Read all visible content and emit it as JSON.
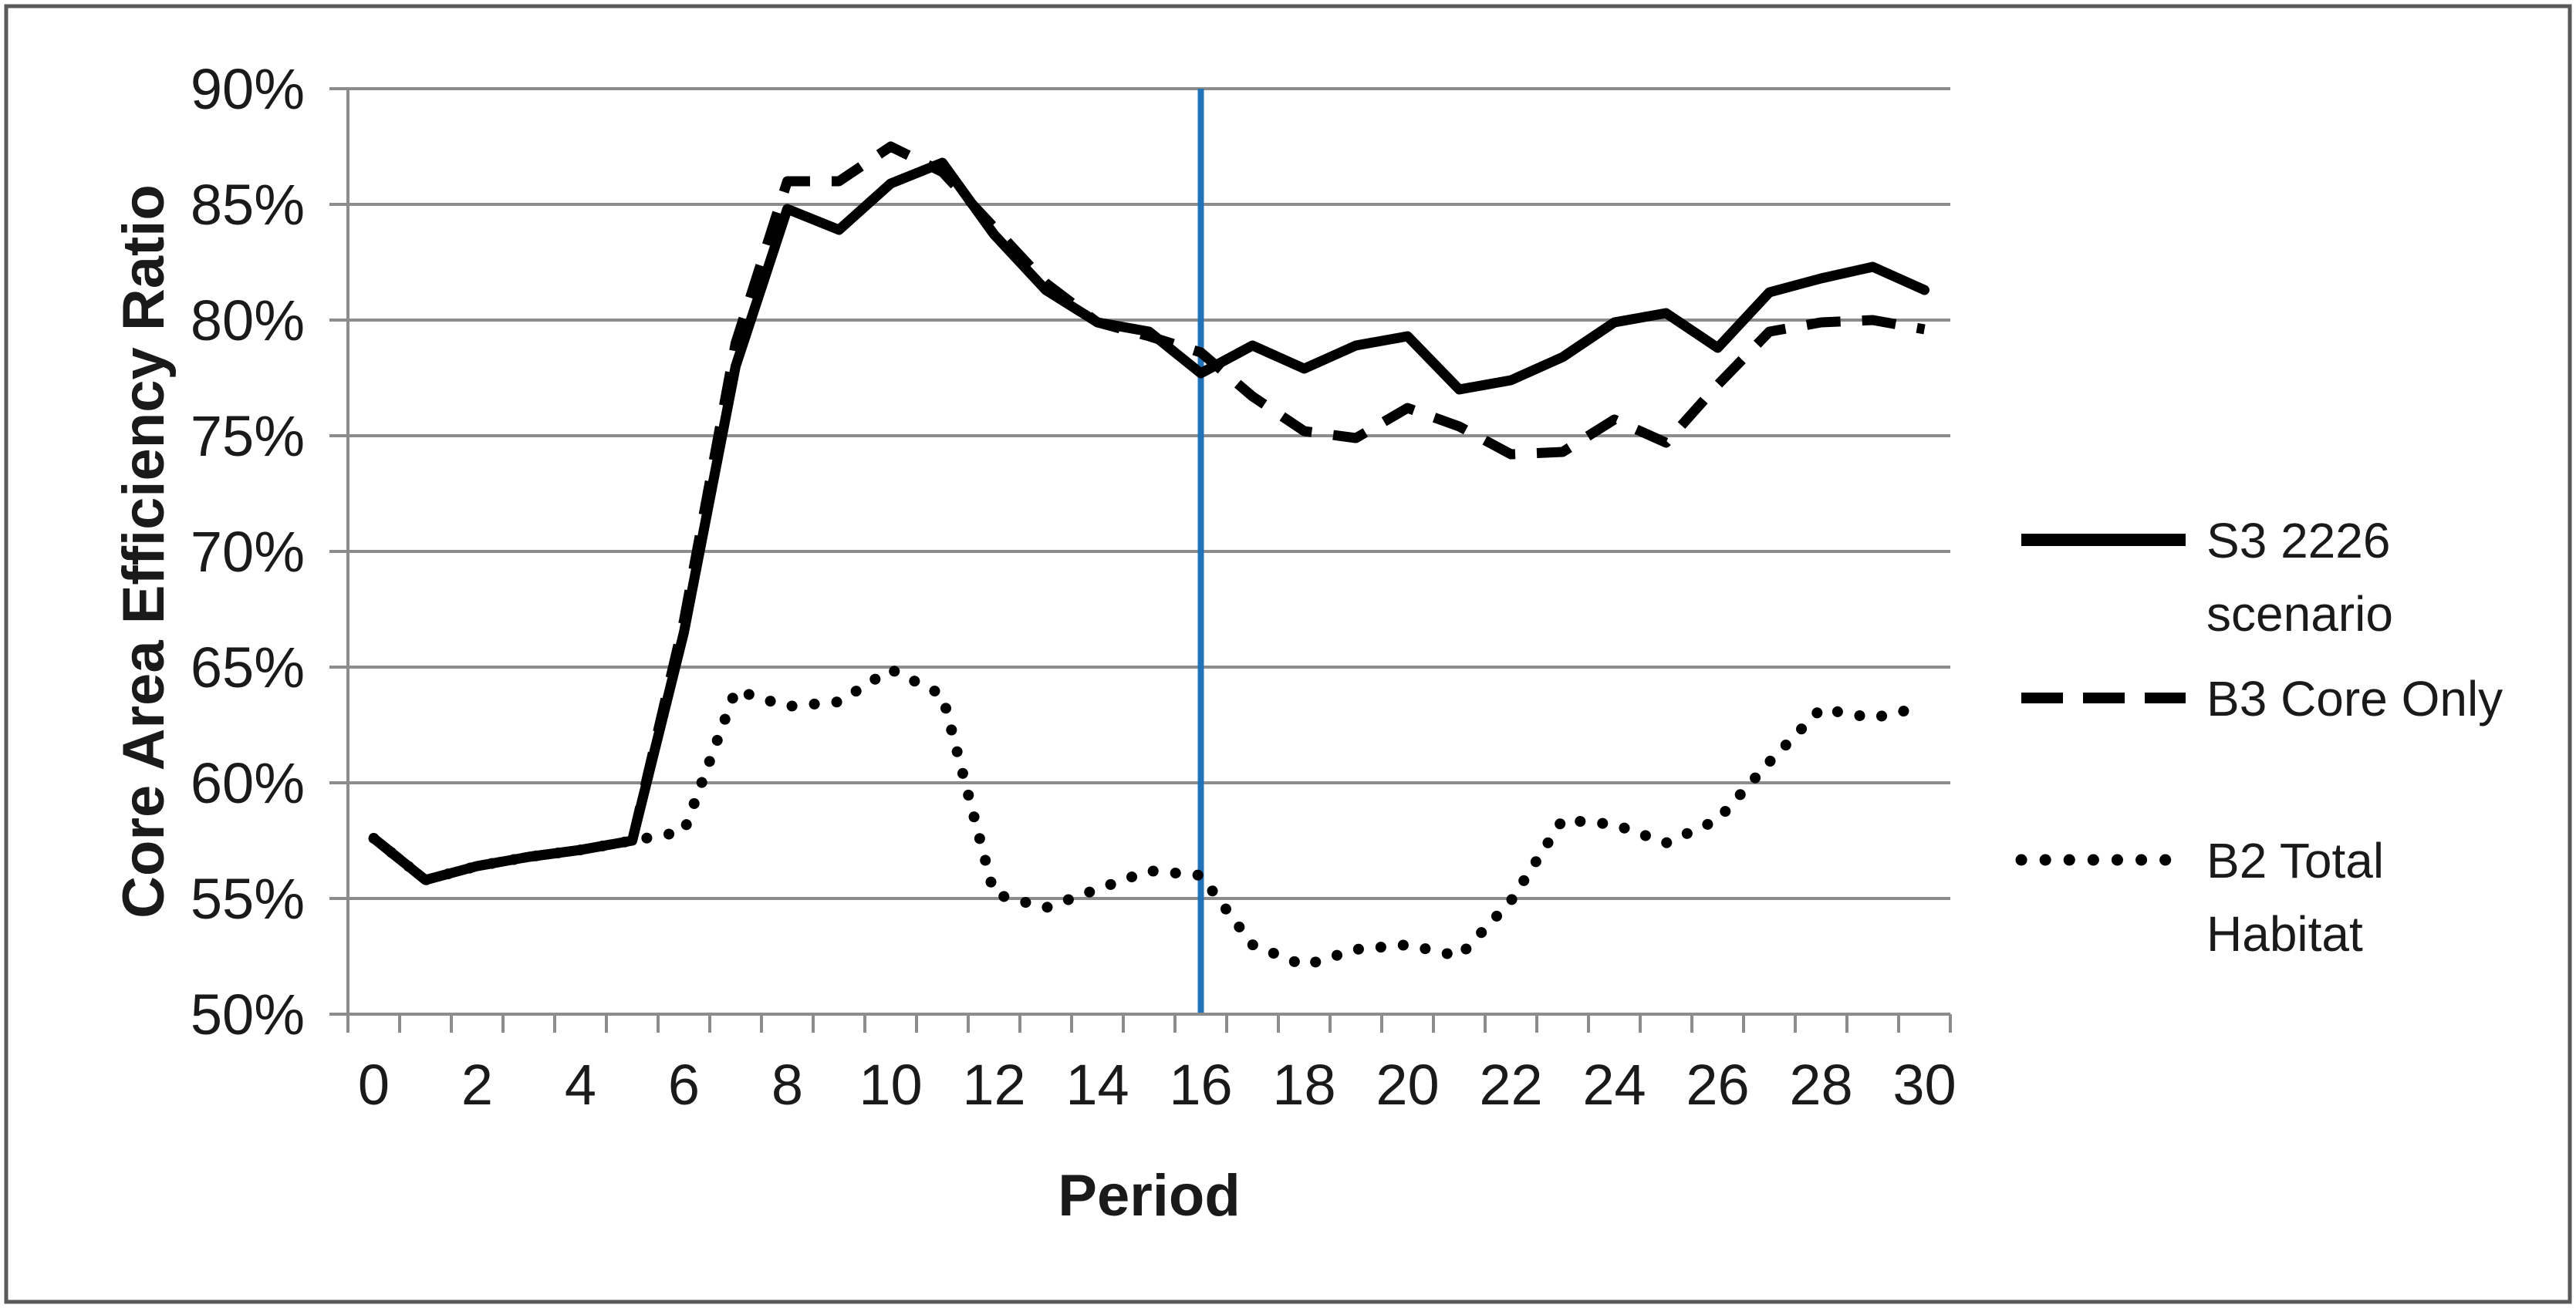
{
  "chart_data": {
    "type": "line",
    "title": "",
    "xlabel": "Period",
    "ylabel": "Core Area Efficiency Ratio",
    "categories": [
      0,
      1,
      2,
      3,
      4,
      5,
      6,
      7,
      8,
      9,
      10,
      11,
      12,
      13,
      14,
      15,
      16,
      17,
      18,
      19,
      20,
      21,
      22,
      23,
      24,
      25,
      26,
      27,
      28,
      29,
      30
    ],
    "x_tick_labels": [
      "0",
      "2",
      "4",
      "6",
      "8",
      "10",
      "12",
      "14",
      "16",
      "18",
      "20",
      "22",
      "24",
      "26",
      "28",
      "30"
    ],
    "y_tick_labels": [
      "50%",
      "55%",
      "60%",
      "65%",
      "70%",
      "75%",
      "80%",
      "85%",
      "90%"
    ],
    "ylim": [
      50,
      90
    ],
    "xlim": [
      0,
      30
    ],
    "grid": "horizontal",
    "legend_position": "right",
    "series": [
      {
        "name": "S3 2226 scenario",
        "style": "solid",
        "values": [
          57.6,
          55.8,
          56.4,
          56.8,
          57.1,
          57.5,
          66.5,
          78.0,
          84.8,
          83.9,
          85.9,
          86.8,
          83.7,
          81.3,
          79.9,
          79.5,
          77.7,
          78.9,
          77.9,
          78.9,
          79.3,
          77.0,
          77.4,
          78.4,
          79.9,
          80.3,
          78.8,
          81.2,
          81.8,
          82.3,
          81.3
        ]
      },
      {
        "name": "B3 Core Only",
        "style": "dashed",
        "values": [
          57.6,
          55.8,
          56.4,
          56.8,
          57.1,
          57.5,
          67.0,
          79.0,
          86.0,
          86.0,
          87.5,
          86.4,
          84.0,
          81.6,
          79.9,
          79.3,
          78.6,
          76.7,
          75.2,
          74.9,
          76.2,
          75.4,
          74.2,
          74.3,
          75.7,
          74.7,
          77.2,
          79.5,
          79.9,
          80.0,
          79.6
        ]
      },
      {
        "name": "B2 Total Habitat",
        "style": "dotted",
        "values": [
          57.6,
          55.8,
          56.4,
          56.8,
          57.1,
          57.5,
          57.9,
          64.0,
          63.3,
          63.5,
          64.9,
          63.8,
          55.2,
          54.6,
          55.4,
          56.2,
          56.0,
          53.0,
          52.1,
          52.8,
          53.0,
          52.5,
          54.9,
          58.4,
          58.2,
          57.4,
          58.4,
          60.9,
          63.2,
          62.8,
          63.3
        ]
      }
    ],
    "annotations": [
      {
        "type": "vline",
        "x": 16,
        "color": "#2272B8"
      }
    ]
  },
  "legend": {
    "entries": [
      {
        "series": "S3 2226 scenario",
        "style": "solid",
        "label_lines": [
          "S3 2226",
          "scenario"
        ]
      },
      {
        "series": "B3 Core Only",
        "style": "dashed",
        "label_lines": [
          "B3 Core Only"
        ]
      },
      {
        "series": "B2 Total Habitat",
        "style": "dotted",
        "label_lines": [
          "B2 Total",
          "Habitat"
        ]
      }
    ]
  },
  "colors": {
    "series_line": "#000000",
    "marker_line": "#2272B8",
    "gridline": "#8C8C8C",
    "axis_line": "#8C8C8C",
    "text": "#1a1a1a",
    "border": "#595959",
    "background": "#ffffff"
  }
}
